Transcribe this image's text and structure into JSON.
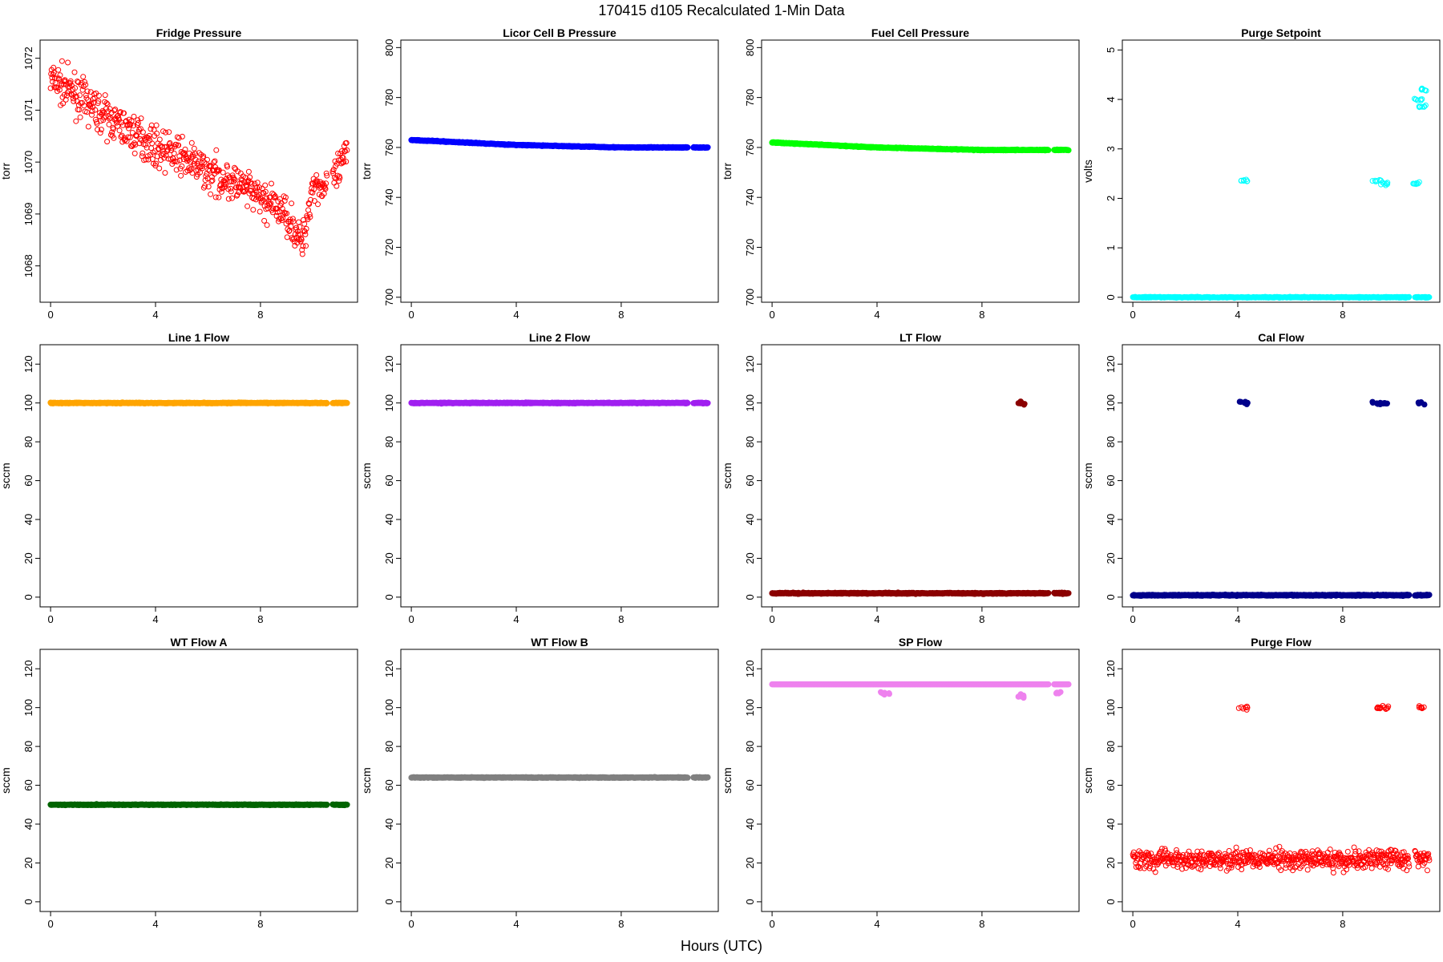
{
  "figure": {
    "title": "170415   d105   Recalculated 1-Min Data",
    "xlabel": "Hours (UTC)"
  },
  "chart_data": [
    {
      "type": "scatter",
      "title": "Fridge Pressure",
      "ylabel": "torr",
      "xlim": [
        -0.4,
        11.7
      ],
      "ylim": [
        1067.3,
        1072.35
      ],
      "xticks": [
        0,
        4,
        8
      ],
      "yticks": [
        1068,
        1069,
        1070,
        1071,
        1072
      ],
      "color": "#ff0000",
      "marker": "open-circle",
      "series": [
        {
          "pattern": "noisy-decline",
          "x": [
            0,
            1,
            2,
            3,
            4,
            5,
            6,
            7,
            8,
            9,
            9.6,
            10,
            10.5,
            11,
            11.3
          ],
          "y": [
            1071.6,
            1071.3,
            1070.9,
            1070.6,
            1070.3,
            1070.1,
            1069.8,
            1069.6,
            1069.3,
            1069.0,
            1068.4,
            1069.6,
            1069.5,
            1069.8,
            1070.2
          ]
        }
      ]
    },
    {
      "type": "scatter",
      "title": "Licor Cell B Pressure",
      "ylabel": "torr",
      "xlim": [
        -0.4,
        11.7
      ],
      "ylim": [
        698,
        803
      ],
      "xticks": [
        0,
        4,
        8
      ],
      "yticks": [
        700,
        720,
        740,
        760,
        780,
        800
      ],
      "color": "#0000ff",
      "marker": "filled-circle",
      "series": [
        {
          "pattern": "steady",
          "x": [
            0,
            2,
            4,
            6,
            8,
            10.5,
            11
          ],
          "y": [
            763,
            762,
            761,
            760.5,
            760,
            760,
            760
          ]
        }
      ]
    },
    {
      "type": "scatter",
      "title": "Fuel Cell Pressure",
      "ylabel": "torr",
      "xlim": [
        -0.4,
        11.7
      ],
      "ylim": [
        698,
        803
      ],
      "xticks": [
        0,
        4,
        8
      ],
      "yticks": [
        700,
        720,
        740,
        760,
        780,
        800
      ],
      "color": "#00ff00",
      "marker": "filled-circle",
      "series": [
        {
          "pattern": "steady",
          "x": [
            0,
            2,
            4,
            6,
            8,
            10.5,
            11
          ],
          "y": [
            762,
            761,
            760,
            759.5,
            759,
            759,
            759
          ]
        }
      ]
    },
    {
      "type": "scatter",
      "title": "Purge Setpoint",
      "ylabel": "volts",
      "xlim": [
        -0.4,
        11.7
      ],
      "ylim": [
        -0.1,
        5.2
      ],
      "xticks": [
        0,
        4,
        8
      ],
      "yticks": [
        0,
        1,
        2,
        3,
        4,
        5
      ],
      "color": "#00ffff",
      "marker": "open-circle",
      "series": [
        {
          "pattern": "baseline-with-spikes",
          "x": [
            0,
            4.2,
            9.3,
            9.6,
            10.8,
            10.9,
            11.0,
            11.1
          ],
          "y": [
            0,
            2.35,
            2.35,
            2.3,
            2.3,
            4.0,
            3.85,
            4.2
          ]
        }
      ]
    },
    {
      "type": "scatter",
      "title": "Line 1 Flow",
      "ylabel": "sccm",
      "xlim": [
        -0.4,
        11.7
      ],
      "ylim": [
        -5,
        130
      ],
      "xticks": [
        0,
        4,
        8
      ],
      "yticks": [
        0,
        20,
        40,
        60,
        80,
        100,
        120
      ],
      "color": "#ffa500",
      "marker": "filled-circle",
      "series": [
        {
          "pattern": "steady",
          "x": [
            0,
            10.5,
            11
          ],
          "y": [
            100,
            100,
            100
          ]
        }
      ]
    },
    {
      "type": "scatter",
      "title": "Line 2 Flow",
      "ylabel": "sccm",
      "xlim": [
        -0.4,
        11.7
      ],
      "ylim": [
        -5,
        130
      ],
      "xticks": [
        0,
        4,
        8
      ],
      "yticks": [
        0,
        20,
        40,
        60,
        80,
        100,
        120
      ],
      "color": "#a020f0",
      "marker": "filled-circle",
      "series": [
        {
          "pattern": "steady",
          "x": [
            0,
            10.5,
            11
          ],
          "y": [
            100,
            100,
            100
          ]
        }
      ]
    },
    {
      "type": "scatter",
      "title": "LT Flow",
      "ylabel": "sccm",
      "xlim": [
        -0.4,
        11.7
      ],
      "ylim": [
        -5,
        130
      ],
      "xticks": [
        0,
        4,
        8
      ],
      "yticks": [
        0,
        20,
        40,
        60,
        80,
        100,
        120
      ],
      "color": "#8b0000",
      "marker": "filled-circle",
      "series": [
        {
          "pattern": "baseline-with-spikes",
          "x": [
            0,
            9.5,
            11
          ],
          "y": [
            2,
            100,
            2
          ]
        }
      ]
    },
    {
      "type": "scatter",
      "title": "Cal Flow",
      "ylabel": "sccm",
      "xlim": [
        -0.4,
        11.7
      ],
      "ylim": [
        -5,
        130
      ],
      "xticks": [
        0,
        4,
        8
      ],
      "yticks": [
        0,
        20,
        40,
        60,
        80,
        100,
        120
      ],
      "color": "#00008b",
      "marker": "filled-circle",
      "series": [
        {
          "pattern": "baseline-with-spikes",
          "x": [
            0,
            4.2,
            9.3,
            9.6,
            11.0
          ],
          "y": [
            1,
            100,
            100,
            100,
            100
          ]
        }
      ]
    },
    {
      "type": "scatter",
      "title": "WT Flow A",
      "ylabel": "sccm",
      "xlim": [
        -0.4,
        11.7
      ],
      "ylim": [
        -5,
        130
      ],
      "xticks": [
        0,
        4,
        8
      ],
      "yticks": [
        0,
        20,
        40,
        60,
        80,
        100,
        120
      ],
      "color": "#006400",
      "marker": "filled-circle",
      "series": [
        {
          "pattern": "steady",
          "x": [
            0,
            10.5,
            11
          ],
          "y": [
            50,
            50,
            50
          ]
        }
      ]
    },
    {
      "type": "scatter",
      "title": "WT Flow B",
      "ylabel": "sccm",
      "xlim": [
        -0.4,
        11.7
      ],
      "ylim": [
        -5,
        130
      ],
      "xticks": [
        0,
        4,
        8
      ],
      "yticks": [
        0,
        20,
        40,
        60,
        80,
        100,
        120
      ],
      "color": "#808080",
      "marker": "filled-circle",
      "series": [
        {
          "pattern": "steady",
          "x": [
            0,
            10.5,
            11
          ],
          "y": [
            64,
            64,
            64
          ]
        }
      ]
    },
    {
      "type": "scatter",
      "title": "SP Flow",
      "ylabel": "sccm",
      "xlim": [
        -0.4,
        11.7
      ],
      "ylim": [
        -5,
        130
      ],
      "xticks": [
        0,
        4,
        8
      ],
      "yticks": [
        0,
        20,
        40,
        60,
        80,
        100,
        120
      ],
      "color": "#ee82ee",
      "marker": "filled-circle",
      "series": [
        {
          "pattern": "steady-with-dips",
          "x": [
            0,
            4.3,
            9.5,
            10.9,
            11
          ],
          "y": [
            112,
            107.5,
            106,
            107.5,
            112
          ]
        }
      ]
    },
    {
      "type": "scatter",
      "title": "Purge Flow",
      "ylabel": "sccm",
      "xlim": [
        -0.4,
        11.7
      ],
      "ylim": [
        -5,
        130
      ],
      "xticks": [
        0,
        4,
        8
      ],
      "yticks": [
        0,
        20,
        40,
        60,
        80,
        100,
        120
      ],
      "color": "#ff0000",
      "marker": "open-circle",
      "series": [
        {
          "pattern": "noisy-with-spikes",
          "x": [
            0,
            4.2,
            9.3,
            9.6,
            11.0
          ],
          "y": [
            22,
            100,
            100,
            100,
            100
          ]
        }
      ]
    }
  ]
}
